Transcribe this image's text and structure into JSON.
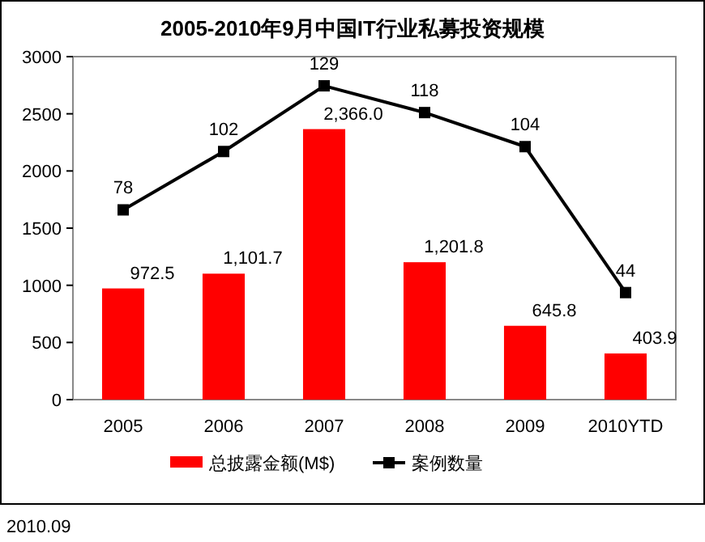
{
  "chart_data": {
    "type": "bar",
    "title": "2005-2010年9月中国IT行业私募投资规模",
    "categories": [
      "2005",
      "2006",
      "2007",
      "2008",
      "2009",
      "2010YTD"
    ],
    "series": [
      {
        "name": "总披露金额(M$)",
        "color": "#ff0000",
        "values": [
          972.5,
          1101.7,
          2366.0,
          1201.8,
          645.8,
          403.9
        ],
        "value_labels": [
          "972.5",
          "1,101.7",
          "2,366.0",
          "1,201.8",
          "645.8",
          "403.9"
        ]
      },
      {
        "name": "案例数量",
        "type": "line",
        "axis": "y2",
        "color": "#000000",
        "marker": "square",
        "values": [
          78,
          102,
          129,
          118,
          104,
          44
        ]
      }
    ],
    "ylim": [
      0,
      3000
    ],
    "yticks": [
      0,
      500,
      1000,
      1500,
      2000,
      2500,
      3000
    ],
    "y2lim": [
      0,
      141
    ],
    "data_labels": true,
    "legend": "bottom",
    "grid": false,
    "annotations": [
      "2010.09"
    ]
  }
}
